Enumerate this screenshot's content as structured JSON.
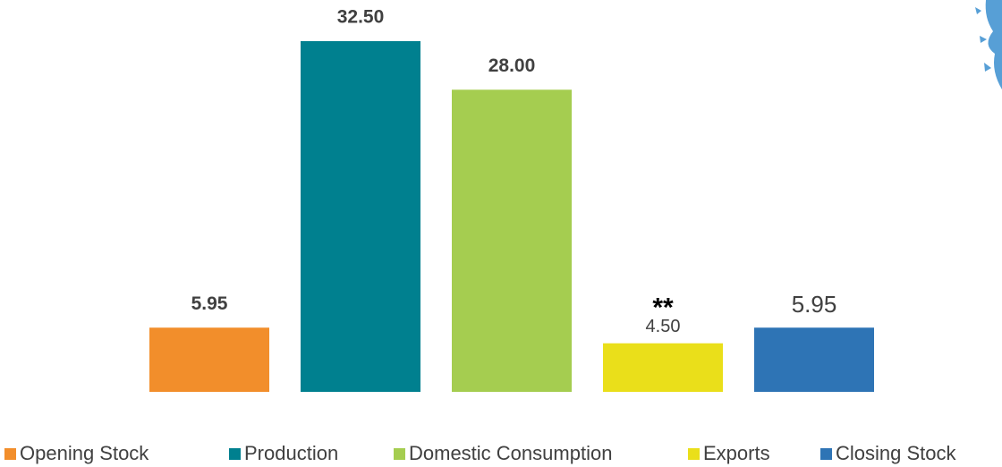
{
  "chart_data": {
    "type": "bar",
    "categories": [
      "Opening Stock",
      "Production",
      "Domestic Consumption",
      "Exports",
      "Closing Stock"
    ],
    "values": [
      5.95,
      32.5,
      28.0,
      4.5,
      5.95
    ],
    "value_labels": [
      "5.95",
      "32.50",
      "28.00",
      "4.50",
      "5.95"
    ],
    "colors": [
      "#f28e2b",
      "#00808f",
      "#a5cd50",
      "#eadf1a",
      "#2e74b5"
    ],
    "ylim": [
      0,
      32.5
    ],
    "legend": "bottom",
    "annotations": [
      {
        "text": "**",
        "category": "Exports"
      }
    ]
  }
}
